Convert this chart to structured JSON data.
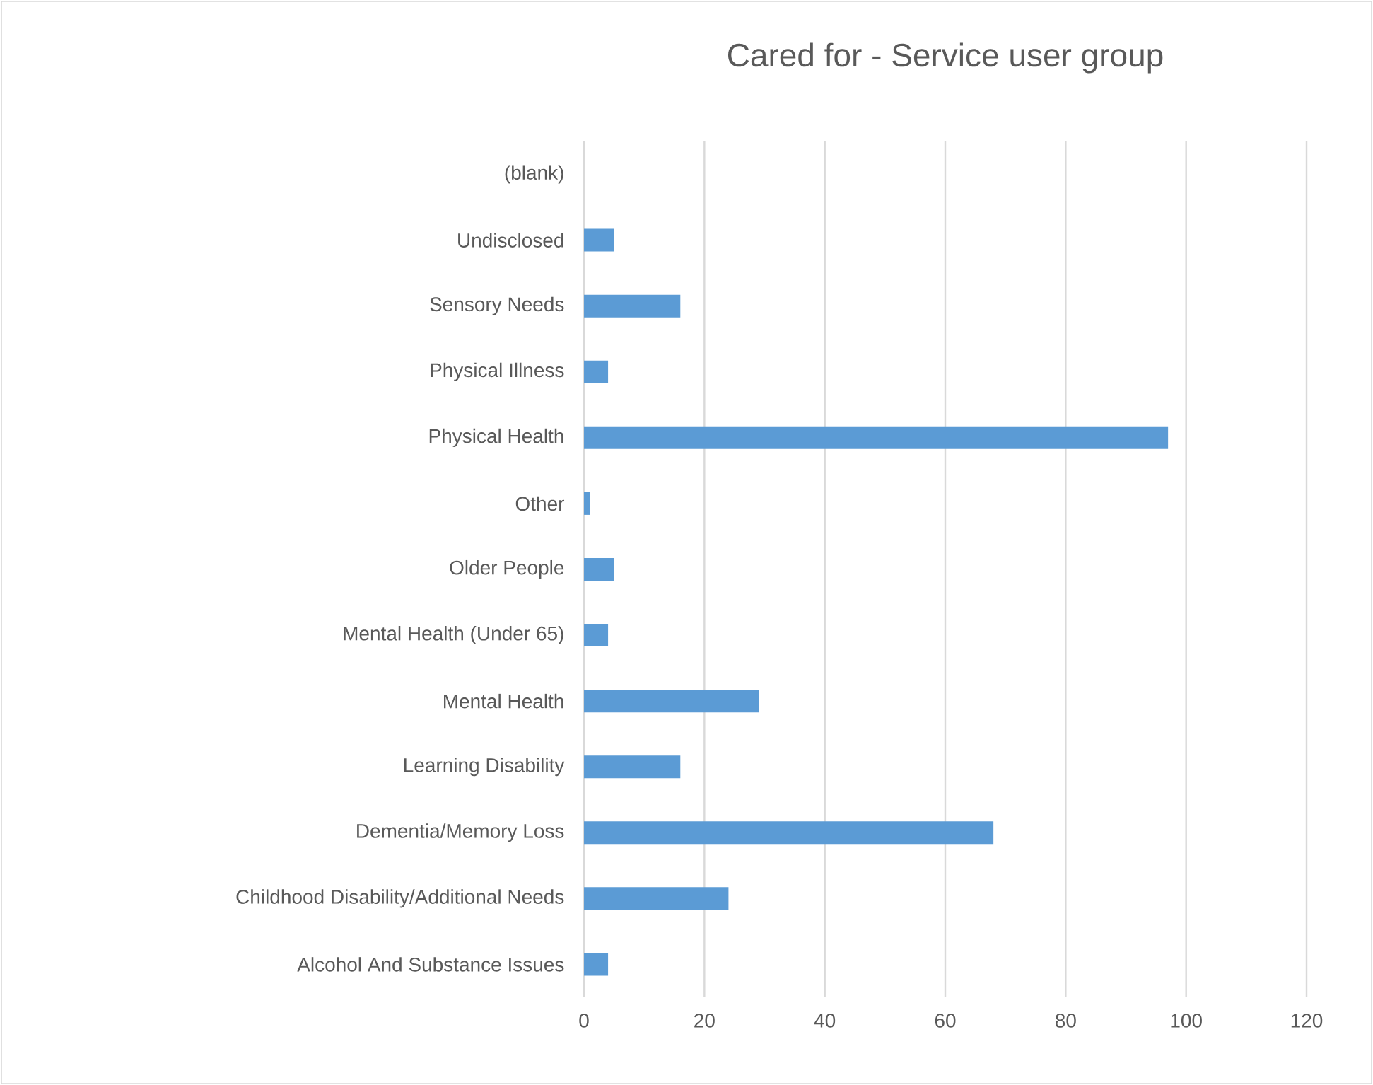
{
  "chart_data": {
    "type": "bar",
    "orientation": "horizontal",
    "title": "Cared for - Service user group",
    "categories": [
      "(blank)",
      "Undisclosed",
      "Sensory Needs",
      "Physical Illness",
      "Physical Health",
      "Other",
      "Older People",
      "Mental Health (Under 65)",
      "Mental Health",
      "Learning Disability",
      "Dementia/Memory Loss",
      "Childhood Disability/Additional Needs",
      "Alcohol And Substance Issues"
    ],
    "values": [
      0,
      5,
      16,
      4,
      97,
      1,
      5,
      4,
      29,
      16,
      68,
      24,
      4
    ],
    "color": "#5b9bd5",
    "xlim": [
      0,
      120
    ],
    "xticks": [
      0,
      20,
      40,
      60,
      80,
      100,
      120
    ],
    "grid": "x"
  }
}
